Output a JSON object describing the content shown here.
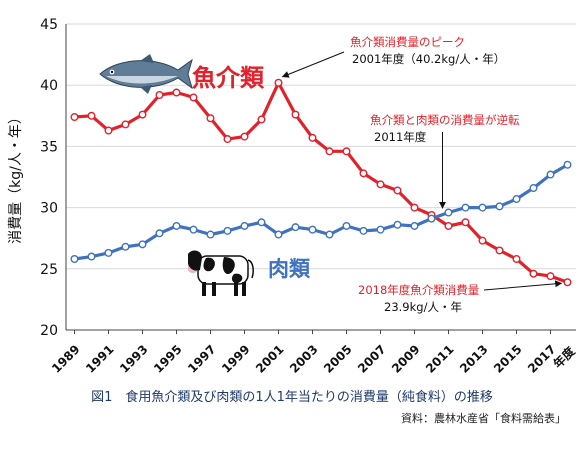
{
  "chart_data": {
    "type": "line",
    "x": [
      1989,
      1990,
      1991,
      1992,
      1993,
      1994,
      1995,
      1996,
      1997,
      1998,
      1999,
      2000,
      2001,
      2002,
      2003,
      2004,
      2005,
      2006,
      2007,
      2008,
      2009,
      2010,
      2011,
      2012,
      2013,
      2014,
      2015,
      2016,
      2017,
      2018
    ],
    "x_tick_labels": [
      "1989",
      "1991",
      "1993",
      "1995",
      "1997",
      "1999",
      "2001",
      "2003",
      "2005",
      "2007",
      "2009",
      "2011",
      "2013",
      "2015",
      "2017"
    ],
    "x_unit_label": "年度",
    "ylabel": "消費量（kg/人・年）",
    "ylim": [
      20,
      45
    ],
    "y_ticks": [
      20,
      25,
      30,
      35,
      40,
      45
    ],
    "grid": "horizontal",
    "series": [
      {
        "name": "魚介類",
        "color": "#e3212b",
        "values": [
          37.4,
          37.5,
          36.3,
          36.8,
          37.6,
          39.2,
          39.4,
          39.0,
          37.3,
          35.6,
          35.8,
          37.2,
          40.2,
          37.6,
          35.7,
          34.6,
          34.6,
          32.8,
          31.9,
          31.4,
          30.0,
          29.4,
          28.5,
          28.8,
          27.3,
          26.5,
          25.8,
          24.6,
          24.4,
          23.9
        ]
      },
      {
        "name": "肉類",
        "color": "#3f72c0",
        "values": [
          25.8,
          26.0,
          26.3,
          26.8,
          27.0,
          27.9,
          28.5,
          28.2,
          27.8,
          28.1,
          28.5,
          28.8,
          27.8,
          28.4,
          28.2,
          27.8,
          28.5,
          28.1,
          28.2,
          28.6,
          28.5,
          29.1,
          29.6,
          30.0,
          30.0,
          30.1,
          30.7,
          31.6,
          32.7,
          33.5
        ]
      }
    ],
    "annotations": [
      {
        "title": "魚介類消費量のピーク",
        "detail": "2001年度（40.2kg/人・年）",
        "x": 2001,
        "y": 40.2
      },
      {
        "title": "魚介類と肉類の消費量が逆転",
        "detail": "2011年度",
        "x": 2011,
        "y": 29.3
      },
      {
        "title": "2018年度魚介類消費量",
        "detail": "23.9kg/人・年",
        "x": 2018,
        "y": 23.9
      }
    ]
  },
  "caption": "図1　食用魚介類及び肉類の1人1年当たりの消費量（純食料）の推移",
  "source": "資料：農林水産省「食料需給表」",
  "colors": {
    "fish": "#e3212b",
    "meat": "#3f72c0",
    "annotation_title": "#e3212b",
    "grid": "#d9d9d9"
  },
  "icons": [
    "tuna-fish-icon",
    "cow-icon"
  ]
}
